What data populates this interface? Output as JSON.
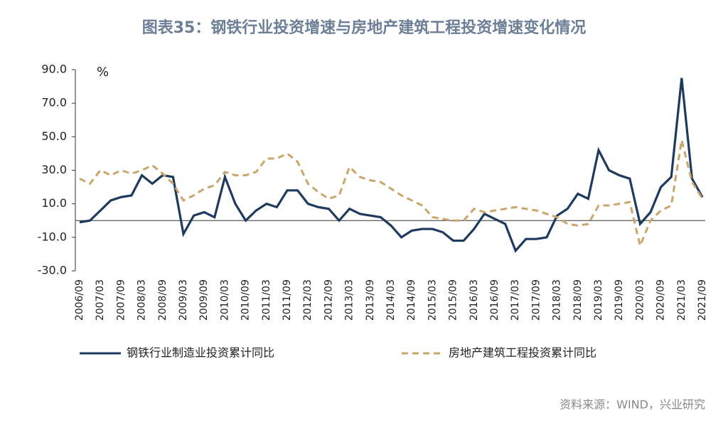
{
  "chart_data": {
    "type": "line",
    "title": "图表35：钢铁行业投资增速与房地产建筑工程投资增速变化情况",
    "unit_label": "%",
    "source": "资料来源：WIND，兴业研究",
    "categories": [
      "2006/09",
      null,
      "2007/03",
      null,
      "2007/09",
      null,
      "2008/03",
      null,
      "2008/09",
      null,
      "2009/03",
      null,
      "2009/09",
      null,
      "2010/03",
      null,
      "2010/09",
      null,
      "2011/03",
      null,
      "2011/09",
      null,
      "2012/03",
      null,
      "2012/09",
      null,
      "2013/03",
      null,
      "2013/09",
      null,
      "2014/03",
      null,
      "2014/09",
      null,
      "2015/03",
      null,
      "2015/09",
      null,
      "2016/03",
      null,
      "2016/09",
      null,
      "2017/03",
      null,
      "2017/09",
      null,
      "2018/03",
      null,
      "2018/09",
      null,
      "2019/03",
      null,
      "2019/09",
      null,
      "2020/03",
      null,
      "2020/09",
      null,
      "2021/03",
      null,
      "2021/09"
    ],
    "series": [
      {
        "name": "钢铁行业制造业投资累计同比",
        "color": "#1f3a5f",
        "dashed": false,
        "values": [
          -1,
          0,
          6,
          12,
          14,
          15,
          27,
          22,
          27,
          26,
          -8,
          3,
          5,
          2,
          26,
          10,
          0,
          6,
          10,
          8,
          18,
          18,
          10,
          8,
          7,
          0,
          7,
          4,
          3,
          2,
          -3,
          -10,
          -6,
          -5,
          -5,
          -7,
          -12,
          -12,
          -5,
          4,
          1,
          -2,
          -18,
          -11,
          -11,
          -10,
          3,
          7,
          16,
          13,
          42,
          30,
          27,
          25,
          -2,
          5,
          20,
          26,
          85,
          25,
          14
        ]
      },
      {
        "name": "房地产建筑工程投资累计同比",
        "color": "#c9a66b",
        "dashed": true,
        "values": [
          25,
          22,
          30,
          27,
          30,
          28,
          30,
          33,
          28,
          22,
          12,
          15,
          19,
          21,
          29,
          27,
          27,
          29,
          37,
          37,
          40,
          35,
          22,
          17,
          13,
          15,
          32,
          26,
          24,
          23,
          19,
          15,
          12,
          9,
          2,
          1,
          0,
          0,
          7,
          5,
          6,
          7,
          8,
          7,
          6,
          4,
          2,
          -2,
          -3,
          -2,
          9,
          9,
          10,
          11,
          -15,
          0,
          6,
          9,
          48,
          23,
          13
        ]
      }
    ],
    "ylim": [
      -30,
      90
    ],
    "yticks": [
      {
        "value": -30,
        "label": "-30.0"
      },
      {
        "value": -10,
        "label": "-10.0"
      },
      {
        "value": 10,
        "label": "10.0"
      },
      {
        "value": 30,
        "label": "30.0"
      },
      {
        "value": 50,
        "label": "50.0"
      },
      {
        "value": 70,
        "label": "70.0"
      },
      {
        "value": 90,
        "label": "90.0"
      }
    ]
  }
}
